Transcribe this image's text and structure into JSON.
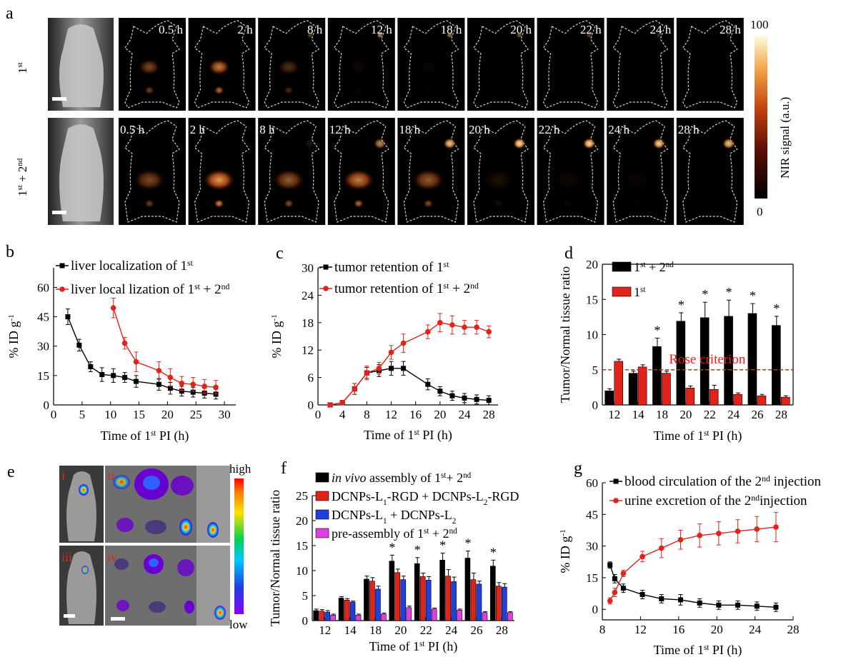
{
  "panel_a": {
    "label": "a",
    "row1_label": "1",
    "row1_label_sup": "st",
    "row2_label_pre": "1",
    "row2_label_sup1": "st",
    "row2_label_mid": " + 2",
    "row2_label_sup2": "nd",
    "row1_times": [
      "0.5 h",
      "2 h",
      "8 h",
      "12 h",
      "18 h",
      "20 h",
      "22 h",
      "24 h",
      "28 h"
    ],
    "row2_times": [
      "0.5 h",
      "2 h",
      "8 h",
      "12 h",
      "18 h",
      "20 h",
      "22 h",
      "24 h",
      "28 h"
    ],
    "row1_liver_intensity": [
      0.45,
      0.75,
      0.3,
      0.05,
      0.03,
      0.02,
      0.01,
      0.0,
      0.0
    ],
    "row1_tumor_intensity": [
      0.0,
      0.0,
      0.3,
      0.6,
      0.5,
      0.4,
      0.3,
      0.2,
      0.1
    ],
    "row2_liver_intensity": [
      0.45,
      0.9,
      0.55,
      0.75,
      0.55,
      0.1,
      0.05,
      0.03,
      0.02
    ],
    "row2_tumor_intensity": [
      0.0,
      0.0,
      0.1,
      0.6,
      0.85,
      0.95,
      0.95,
      0.9,
      0.85
    ],
    "colorbar_max": "100",
    "colorbar_min": "0",
    "colorbar_label": "NIR signal (a.u.)"
  },
  "panel_e": {
    "label": "e",
    "sub_i": "i",
    "sub_ii": "ii",
    "sub_iii": "iii",
    "sub_iv": "iv",
    "colorbar_high": "high",
    "colorbar_low": "low"
  },
  "chart_data": [
    {
      "panel": "b",
      "type": "line",
      "title": "",
      "xlabel_pre": "Time of 1",
      "xlabel_sup": "st",
      "xlabel_post": " PI (h)",
      "ylabel": "% ID g-1",
      "xlim": [
        0,
        32
      ],
      "ylim": [
        0,
        70
      ],
      "xticks": [
        0,
        5,
        10,
        15,
        20,
        25,
        30
      ],
      "yticks": [
        0,
        15,
        30,
        45,
        60
      ],
      "legend": "top",
      "series": [
        {
          "name_pre": "liver localization of 1",
          "name_sup": "st",
          "name_post": "",
          "color": "#000000",
          "marker": "square",
          "x": [
            2.5,
            4.5,
            6.5,
            8.5,
            10.5,
            12.5,
            14.5,
            18.5,
            20.5,
            22.5,
            24.5,
            26.5,
            28.5
          ],
          "y": [
            45,
            30.5,
            19.5,
            15.5,
            15,
            14,
            12,
            10.5,
            8.5,
            7,
            6.5,
            6,
            5.5
          ],
          "err": [
            4,
            3,
            2.5,
            3.5,
            3.5,
            2.5,
            3,
            3,
            3,
            2.5,
            2.5,
            2.5,
            2.5
          ]
        },
        {
          "name_pre": "liver local lization of 1",
          "name_sup": "st",
          "name_post": " + 2",
          "name_sup2": "nd",
          "color": "#e2231a",
          "marker": "circle",
          "x": [
            10.5,
            12.5,
            14.5,
            18.5,
            20.5,
            22.5,
            24.5,
            26.5,
            28.5
          ],
          "y": [
            49.5,
            31.5,
            22,
            17.5,
            14,
            11,
            10.5,
            9.5,
            9
          ],
          "err": [
            5,
            3,
            5,
            4.5,
            4.5,
            3.5,
            3.5,
            3.5,
            3.5
          ]
        }
      ]
    },
    {
      "panel": "c",
      "type": "line",
      "title": "",
      "xlabel_pre": "Time of 1",
      "xlabel_sup": "st",
      "xlabel_post": " PI (h)",
      "ylabel": "% ID g-1",
      "xlim": [
        0,
        29.5
      ],
      "ylim": [
        0,
        30
      ],
      "xticks": [
        0,
        4,
        8,
        12,
        16,
        20,
        24,
        28
      ],
      "yticks": [
        0,
        6,
        12,
        18,
        24,
        30
      ],
      "legend": "top",
      "series": [
        {
          "name_pre": "tumor retention of 1",
          "name_sup": "st",
          "name_post": "",
          "color": "#000000",
          "marker": "square",
          "x": [
            2,
            4,
            6,
            8,
            10,
            12,
            14,
            18,
            20,
            22,
            24,
            26,
            28
          ],
          "y": [
            0,
            0.5,
            3.5,
            7,
            7.5,
            8,
            8,
            4.5,
            3,
            2,
            1.5,
            1.2,
            1
          ],
          "err": [
            0.3,
            0.5,
            1.2,
            1.2,
            1.3,
            1.5,
            1.5,
            1.2,
            1,
            1,
            1,
            1,
            1
          ]
        },
        {
          "name_pre": "tumor retention of 1",
          "name_sup": "st",
          "name_post": " + 2",
          "name_sup2": "nd",
          "color": "#e2231a",
          "marker": "circle",
          "x": [
            2,
            4,
            6,
            8,
            10,
            12,
            14,
            18,
            20,
            22,
            24,
            26,
            28
          ],
          "y": [
            0,
            0.5,
            3.5,
            7,
            8,
            11.5,
            13.5,
            16,
            18,
            17.5,
            17,
            17,
            16
          ],
          "err": [
            0.3,
            0.5,
            1.2,
            1.5,
            1.3,
            1.5,
            2,
            1.5,
            2,
            2,
            1.5,
            1.5,
            1.3
          ]
        }
      ]
    },
    {
      "panel": "d",
      "type": "bar",
      "title": "",
      "xlabel_pre": "Time of 1",
      "xlabel_sup": "st",
      "xlabel_post": " PI (h)",
      "ylabel": "Tumor/Normal tissue ratio",
      "ylim": [
        0,
        20
      ],
      "yticks": [
        0,
        5,
        10,
        15,
        20
      ],
      "categories": [
        "12",
        "14",
        "18",
        "20",
        "22",
        "24",
        "26",
        "28"
      ],
      "legend": "top-left",
      "annotation": "Rose criterion",
      "threshold": 5,
      "significance": [
        "",
        "",
        "*",
        "*",
        "*",
        "*",
        "*",
        "*"
      ],
      "series": [
        {
          "name_pre": "1",
          "name_sup": "st",
          "name_post": " + 2",
          "name_sup2": "nd",
          "color": "#000000",
          "values": [
            2,
            4.5,
            8.3,
            11.9,
            12.4,
            12.6,
            13,
            11.3
          ],
          "err": [
            0.3,
            0.3,
            1.2,
            1.2,
            2.2,
            2.3,
            1.4,
            1.3
          ]
        },
        {
          "name_pre": "1",
          "name_sup": "st",
          "name_post": "",
          "color": "#e2231a",
          "values": [
            6.2,
            5.4,
            4.5,
            2.4,
            2.2,
            1.5,
            1.3,
            1.1
          ],
          "err": [
            0.3,
            0.3,
            0.3,
            0.3,
            0.6,
            0.2,
            0.2,
            0.2
          ]
        }
      ]
    },
    {
      "panel": "f",
      "type": "bar",
      "title": "",
      "xlabel_pre": "Time of 1",
      "xlabel_sup": "st",
      "xlabel_post": " PI (h)",
      "ylabel": "Tumor/Normal tissue ratio",
      "ylim": [
        0,
        25
      ],
      "yticks": [
        0,
        5,
        10,
        15,
        20,
        25
      ],
      "categories": [
        "12",
        "14",
        "18",
        "20",
        "22",
        "24",
        "26",
        "28"
      ],
      "legend": "top-left",
      "significance": [
        "",
        "",
        "",
        "*",
        "*",
        "*",
        "*",
        "*"
      ],
      "series": [
        {
          "name_italic": "in vivo",
          "name_pre": " assembly of 1",
          "name_sup": "st",
          "name_post": "+ 2",
          "name_sup2": "nd",
          "color": "#000000",
          "values": [
            2,
            4.5,
            8.3,
            11.9,
            11.4,
            12.1,
            12.5,
            10.9
          ],
          "err": [
            0.3,
            0.3,
            0.6,
            1.2,
            1.2,
            1.4,
            1.4,
            1.2
          ]
        },
        {
          "name_pre": "DCNPs-L1-RGD + DCNPs-L2-RGD",
          "color": "#e2231a",
          "values": [
            1.9,
            4.1,
            7.9,
            9.6,
            8.8,
            8.9,
            8.2,
            6.9
          ],
          "err": [
            0.3,
            0.3,
            0.7,
            0.7,
            0.7,
            1.3,
            1.3,
            0.7
          ]
        },
        {
          "name_pre": "DCNPs-L1 + DCNPs-L2",
          "color": "#1f3fe0",
          "values": [
            1.7,
            3.7,
            6.3,
            8.2,
            8.1,
            7.8,
            7.3,
            6.7
          ],
          "err": [
            0.3,
            0.2,
            0.6,
            0.7,
            0.7,
            0.9,
            0.6,
            0.7
          ]
        },
        {
          "name_pre": "pre-assembly of 1",
          "name_sup": "st",
          "name_post": " + 2",
          "name_sup2": "nd",
          "color": "#e040e0",
          "values": [
            1.1,
            1.1,
            1.3,
            2.6,
            2.3,
            2.1,
            1.6,
            1.6
          ],
          "err": [
            0.2,
            0.2,
            0.2,
            0.3,
            0.2,
            0.2,
            0.2,
            0.2
          ]
        }
      ]
    },
    {
      "panel": "g",
      "type": "line",
      "title": "",
      "xlabel_pre": "Time of 1",
      "xlabel_sup": "st",
      "xlabel_post": " PI (h)",
      "ylabel": "% ID g-1",
      "xlim": [
        8,
        28
      ],
      "ylim": [
        -5,
        60
      ],
      "xticks": [
        8,
        12,
        16,
        20,
        24,
        28
      ],
      "yticks": [
        0,
        15,
        30,
        45,
        60
      ],
      "legend": "top",
      "series": [
        {
          "name_pre": "blood circulation of the 2",
          "name_sup": "nd",
          "name_post": " injection",
          "color": "#000000",
          "marker": "square",
          "x": [
            8.8,
            9.3,
            10.2,
            12.2,
            14.2,
            16.2,
            18.2,
            20.2,
            22.2,
            24.2,
            26.2
          ],
          "y": [
            21,
            14.5,
            10,
            7,
            5,
            4.5,
            3,
            2,
            2,
            1.5,
            1
          ],
          "err": [
            1.5,
            2,
            2,
            2,
            2,
            2.5,
            2,
            2,
            2,
            2,
            2
          ]
        },
        {
          "name_pre": "urine excretion of the 2",
          "name_sup": "nd",
          "name_post": "injection",
          "color": "#e2231a",
          "marker": "circle",
          "x": [
            8.8,
            9.3,
            10.2,
            12.2,
            14.2,
            16.2,
            18.2,
            20.2,
            22.2,
            24.2,
            26.2
          ],
          "y": [
            4,
            8,
            17,
            25,
            29,
            33,
            35,
            36,
            37,
            38,
            39
          ],
          "err": [
            1.5,
            2,
            1.5,
            2.5,
            4.5,
            4.5,
            5.5,
            5.5,
            5.5,
            6,
            7
          ]
        }
      ]
    }
  ]
}
